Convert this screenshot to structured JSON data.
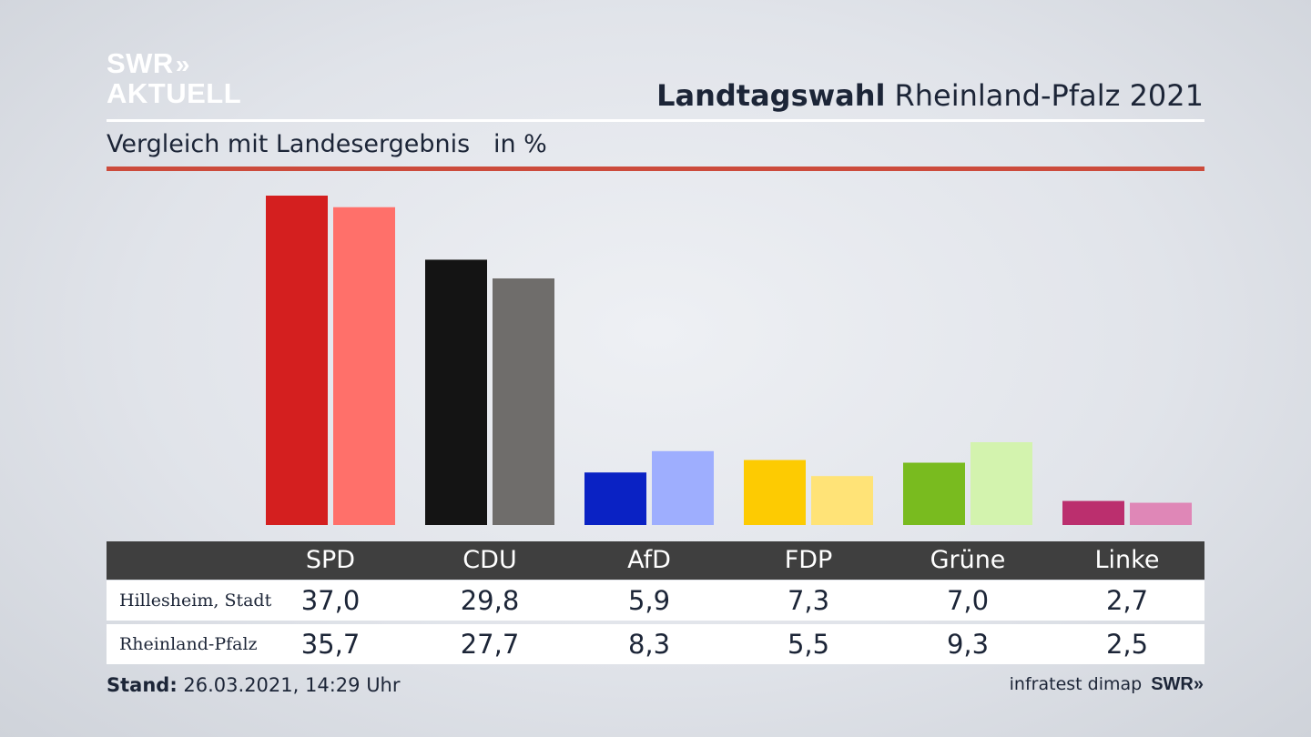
{
  "logo": {
    "line1": "SWR",
    "chevrons": "»",
    "line2": "AKTUELL"
  },
  "header": {
    "title_bold": "Landtagswahl",
    "title_rest": "Rheinland-Pfalz 2021",
    "subtitle": "Vergleich mit Landesergebnis   in %"
  },
  "colors": {
    "accent_red": "#cc4b3c",
    "table_header": "#3f3f3f"
  },
  "chart_data": {
    "type": "bar",
    "categories": [
      "SPD",
      "CDU",
      "AfD",
      "FDP",
      "Grüne",
      "Linke"
    ],
    "series": [
      {
        "name": "Hillesheim, Stadt",
        "values": [
          37.0,
          29.8,
          5.9,
          7.3,
          7.0,
          2.7
        ],
        "colors": [
          "#d41f1f",
          "#141414",
          "#0a22c4",
          "#fdcb02",
          "#79bb1f",
          "#bb2f6e"
        ]
      },
      {
        "name": "Rheinland-Pfalz",
        "values": [
          35.7,
          27.7,
          8.3,
          5.5,
          9.3,
          2.5
        ],
        "colors": [
          "#ff706a",
          "#6f6d6b",
          "#9eaefe",
          "#ffe377",
          "#d3f3ae",
          "#df87b7"
        ]
      }
    ],
    "ylim": [
      0,
      37.0
    ],
    "grid": false,
    "legend": "table-below"
  },
  "table": {
    "rows": [
      {
        "label": "Hillesheim, Stadt",
        "values": [
          "37,0",
          "29,8",
          "5,9",
          "7,3",
          "7,0",
          "2,7"
        ]
      },
      {
        "label": "Rheinland-Pfalz",
        "values": [
          "35,7",
          "27,7",
          "8,3",
          "5,5",
          "9,3",
          "2,5"
        ]
      }
    ]
  },
  "footer": {
    "stand_label": "Stand:",
    "stand_value": "26.03.2021, 14:29 Uhr",
    "source": "infratest dimap",
    "brand": "SWR»"
  }
}
